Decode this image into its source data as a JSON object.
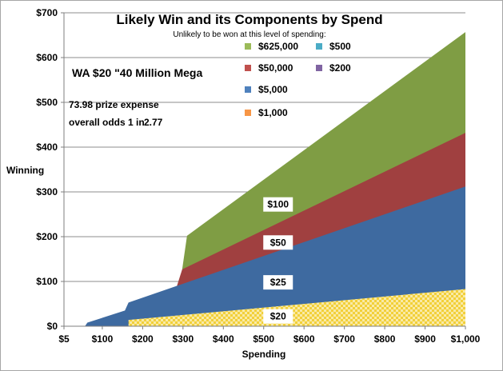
{
  "chart_data": {
    "type": "area",
    "title": "Likely Win and its Components by Spend",
    "subtitle": "Unlikely to be won at this level of spending:",
    "xlabel": "Spending",
    "ylabel": "Winning",
    "xlim": [
      5,
      1000
    ],
    "ylim": [
      0,
      700
    ],
    "x_ticks": [
      5,
      100,
      200,
      300,
      400,
      500,
      600,
      700,
      800,
      900,
      1000
    ],
    "x_tick_labels": [
      "$5",
      "$100",
      "$200",
      "$300",
      "$400",
      "$500",
      "$600",
      "$700",
      "$800",
      "$900",
      "$1,000"
    ],
    "y_ticks": [
      0,
      100,
      200,
      300,
      400,
      500,
      600,
      700
    ],
    "y_tick_labels": [
      "$0",
      "$100",
      "$200",
      "$300",
      "$400",
      "$500",
      "$600",
      "$700"
    ],
    "grid": "horizontal",
    "game_name": "WA $20 \"40 Million Mega",
    "prize_expense_label": "73.98 prize expense",
    "odds_label": "overall odds 1 in",
    "odds_value": "2.77",
    "legend": {
      "placement": "top-center",
      "items": [
        {
          "label": "$625,000",
          "color": "#9bbb59"
        },
        {
          "label": "$500",
          "color": "#4bacc6"
        },
        {
          "label": "$50,000",
          "color": "#c0504d"
        },
        {
          "label": "$200",
          "color": "#8064a2"
        },
        {
          "label": "$5,000",
          "color": "#4f81bd"
        },
        {
          "label": "$1,000",
          "color": "#f79646"
        }
      ]
    },
    "bands": [
      {
        "name": "$20",
        "color": "#f2d03a",
        "pattern": "checker",
        "points": [
          [
            165,
            0
          ],
          [
            165,
            14
          ],
          [
            1000,
            83
          ]
        ],
        "label_at": [
          500,
          22
        ]
      },
      {
        "name": "$25",
        "color": "#3e6aa0",
        "points": [
          [
            57,
            0
          ],
          [
            63,
            8
          ],
          [
            156,
            35
          ],
          [
            165,
            53
          ],
          [
            1000,
            312
          ]
        ],
        "label_at": [
          500,
          98
        ]
      },
      {
        "name": "$50",
        "color": "#a04040",
        "points": [
          [
            285,
            90
          ],
          [
            298,
            127
          ],
          [
            1000,
            432
          ]
        ],
        "label_at": [
          500,
          187
        ]
      },
      {
        "name": "$100",
        "color": "#7f9d44",
        "points": [
          [
            298,
            127
          ],
          [
            310,
            202
          ],
          [
            1000,
            657
          ]
        ],
        "label_at": [
          500,
          272
        ]
      }
    ]
  }
}
